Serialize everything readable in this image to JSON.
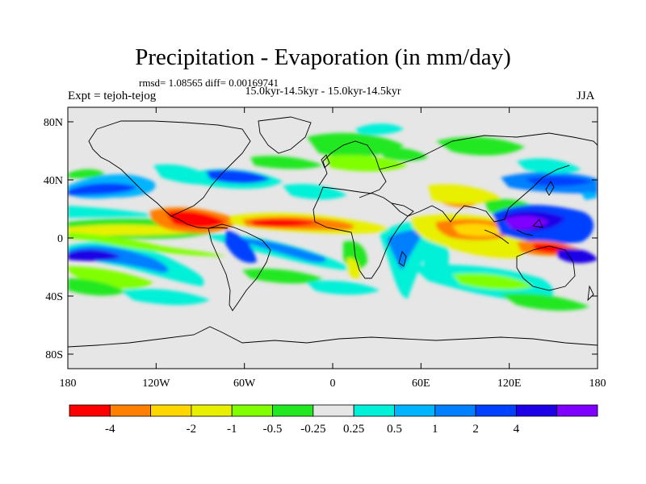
{
  "title": "Precipitation - Evaporation (in mm/day)",
  "stats": "rmsd= 1.08565  diff= 0.00169741",
  "subtitle": "15.0kyr-14.5kyr - 15.0kyr-14.5kyr",
  "expt": "Expt = tejoh-tejog",
  "season": "JJA",
  "lat_labels": [
    "80N",
    "40N",
    "0",
    "40S",
    "80S"
  ],
  "lon_labels": [
    "180",
    "120W",
    "60W",
    "0",
    "60E",
    "120E",
    "180"
  ],
  "colorbar": {
    "labels": [
      "-4",
      "-2",
      "-1",
      "-0.5",
      "-0.25",
      "0.25",
      "0.5",
      "1",
      "2",
      "4"
    ],
    "colors": [
      "#ff0000",
      "#ff8000",
      "#ffd700",
      "#e8f000",
      "#80ff00",
      "#22e822",
      "#e6e6e6",
      "#00f0d8",
      "#00b4ff",
      "#0080ff",
      "#0040ff",
      "#1e00e6",
      "#8000ff"
    ]
  }
}
